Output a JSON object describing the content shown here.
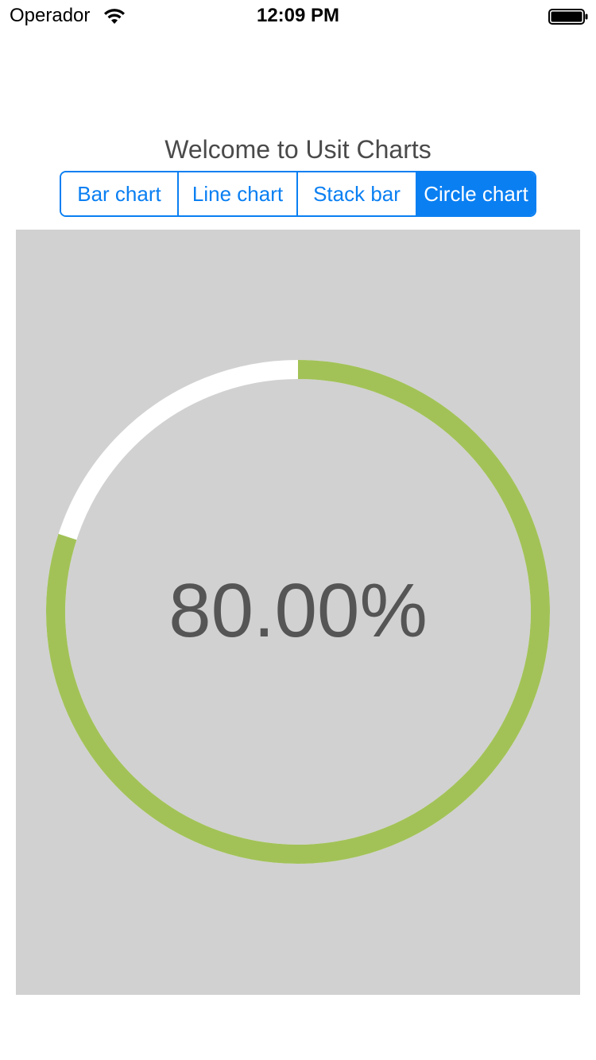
{
  "status_bar": {
    "carrier": "Operador",
    "time": "12:09 PM",
    "wifi_icon": "wifi-icon",
    "battery_icon": "battery-full-icon"
  },
  "header": {
    "title": "Welcome to Usit Charts"
  },
  "segmented_control": {
    "segments": [
      {
        "label": "Bar chart",
        "selected": false
      },
      {
        "label": "Line chart",
        "selected": false
      },
      {
        "label": "Stack bar",
        "selected": false
      },
      {
        "label": "Circle chart",
        "selected": true
      }
    ],
    "accent_color": "#0a7ff2"
  },
  "chart_data": {
    "type": "pie",
    "variant": "progress-ring",
    "value": 0.8,
    "label": "80.00%",
    "progress_color": "#a2c257",
    "track_color": "#ffffff",
    "background_color": "#d1d1d1"
  }
}
